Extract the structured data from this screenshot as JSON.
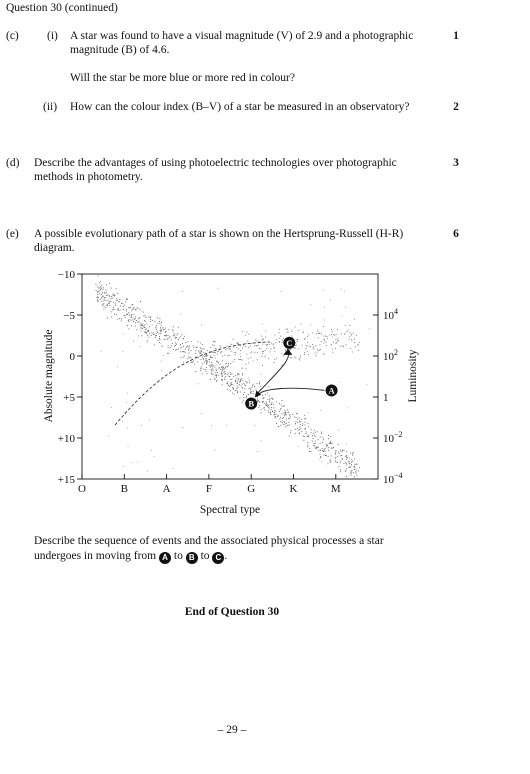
{
  "header": "Question 30 (continued)",
  "part_c": {
    "label": "(c)",
    "i_label": "(i)",
    "i_line1": "A star was found to have a visual magnitude (V) of 2.9 and a photographic",
    "i_line2": "magnitude (B) of 4.6.",
    "i_question": "Will the star be more blue or more red in colour?",
    "i_marks": "1",
    "ii_label": "(ii)",
    "ii_text": "How can the colour index (B–V) of a star be measured in an observatory?",
    "ii_marks": "2"
  },
  "part_d": {
    "label": "(d)",
    "line1": "Describe the advantages of using photoelectric technologies over photographic",
    "line2": "methods in photometry.",
    "marks": "3"
  },
  "part_e": {
    "label": "(e)",
    "line1": "A possible evolutionary path of a star is shown on the Hertsprung-Russell (H-R)",
    "line2": "diagram.",
    "marks": "6",
    "desc_line1": "Describe the sequence of events and the associated physical processes a star",
    "desc_pre": "undergoes in moving from",
    "desc_to1": "to",
    "desc_to2": "to",
    "desc_end": "."
  },
  "chart_data": {
    "type": "scatter",
    "title": "",
    "xlabel": "Spectral type",
    "ylabel": "Absolute magnitude",
    "y2label": "Luminosity",
    "categories": [
      "O",
      "B",
      "A",
      "F",
      "G",
      "K",
      "M"
    ],
    "ylim": [
      -10,
      15
    ],
    "y_ticks": [
      "−10",
      "−5",
      "0",
      "+5",
      "+10",
      "+15"
    ],
    "y2_ticks": [
      {
        "base": "10",
        "exp": "4"
      },
      {
        "base": "10",
        "exp": "2"
      },
      {
        "base": "1",
        "exp": ""
      },
      {
        "base": "10",
        "exp": "−2"
      },
      {
        "base": "10",
        "exp": "−4"
      }
    ],
    "points": [
      {
        "label": "A",
        "spectral": "K",
        "x": 5.9,
        "y": 4.2
      },
      {
        "label": "B",
        "spectral": "G",
        "x": 4.0,
        "y": 5.8
      },
      {
        "label": "C",
        "spectral": "G",
        "x": 4.9,
        "y": -1.6
      }
    ]
  },
  "end_text": "End of Question 30",
  "page_number": "– 29 –"
}
